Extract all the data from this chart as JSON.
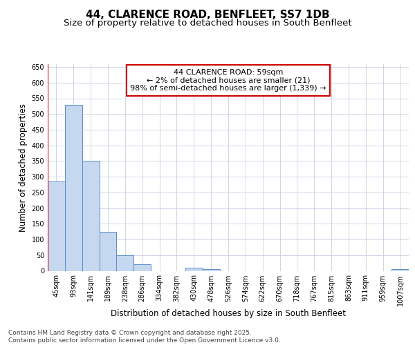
{
  "title": "44, CLARENCE ROAD, BENFLEET, SS7 1DB",
  "subtitle": "Size of property relative to detached houses in South Benfleet",
  "xlabel": "Distribution of detached houses by size in South Benfleet",
  "ylabel": "Number of detached properties",
  "bin_labels": [
    "45sqm",
    "93sqm",
    "141sqm",
    "189sqm",
    "238sqm",
    "286sqm",
    "334sqm",
    "382sqm",
    "430sqm",
    "478sqm",
    "526sqm",
    "574sqm",
    "622sqm",
    "670sqm",
    "718sqm",
    "767sqm",
    "815sqm",
    "863sqm",
    "911sqm",
    "959sqm",
    "1007sqm"
  ],
  "bar_values": [
    285,
    530,
    350,
    125,
    50,
    20,
    0,
    0,
    10,
    5,
    0,
    0,
    0,
    0,
    0,
    0,
    0,
    0,
    0,
    0,
    5
  ],
  "bar_color": "#c5d8f0",
  "bar_edge_color": "#5b8ec4",
  "annotation_box_text": "44 CLARENCE ROAD: 59sqm\n← 2% of detached houses are smaller (21)\n98% of semi-detached houses are larger (1,339) →",
  "annotation_box_color": "#ffffff",
  "annotation_box_edge_color": "#cc0000",
  "vline_color": "#cc0000",
  "background_color": "#ffffff",
  "grid_color": "#c8cfe0",
  "ylim": [
    0,
    660
  ],
  "yticks": [
    0,
    50,
    100,
    150,
    200,
    250,
    300,
    350,
    400,
    450,
    500,
    550,
    600,
    650
  ],
  "footer_text": "Contains HM Land Registry data © Crown copyright and database right 2025.\nContains public sector information licensed under the Open Government Licence v3.0.",
  "title_fontsize": 11,
  "subtitle_fontsize": 9.5,
  "xlabel_fontsize": 8.5,
  "ylabel_fontsize": 8.5,
  "tick_fontsize": 7,
  "annotation_fontsize": 8,
  "footer_fontsize": 6.5
}
